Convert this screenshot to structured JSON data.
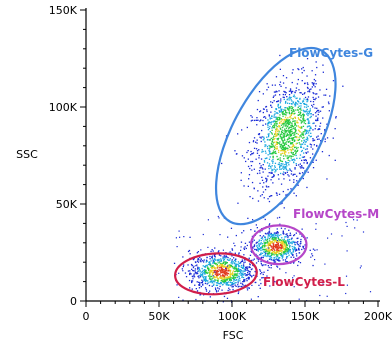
{
  "chart_data": {
    "type": "scatter",
    "xlabel": "FSC",
    "ylabel": "SSC",
    "xlim": [
      0,
      200000
    ],
    "ylim": [
      0,
      150000
    ],
    "x_ticks": [
      {
        "value": 0,
        "label": "0"
      },
      {
        "value": 50000,
        "label": "50K"
      },
      {
        "value": 100000,
        "label": "100K"
      },
      {
        "value": 150000,
        "label": "150K"
      },
      {
        "value": 200000,
        "label": "200K"
      }
    ],
    "y_ticks": [
      {
        "value": 0,
        "label": "0"
      },
      {
        "value": 50000,
        "label": "50K"
      },
      {
        "value": 100000,
        "label": "100K"
      },
      {
        "value": 150000,
        "label": "150K"
      }
    ],
    "grid": false,
    "density_colormap": [
      "#1a2bd6",
      "#1aa7e0",
      "#27c940",
      "#e8d020",
      "#e23a1e"
    ],
    "populations": [
      {
        "name": "FlowCytes-G",
        "color": "#4a8de0",
        "center": [
          138000,
          86000
        ],
        "spread": [
          12000,
          13000
        ],
        "events": 1300,
        "tilt": 0.35
      },
      {
        "name": "FlowCytes-M",
        "color": "#b646c8",
        "center": [
          130000,
          28000
        ],
        "spread": [
          9000,
          4500
        ],
        "events": 650,
        "tilt": 0.0
      },
      {
        "name": "FlowCytes-L",
        "color": "#d11e4a",
        "center": [
          93000,
          15000
        ],
        "spread": [
          11000,
          5000
        ],
        "events": 850,
        "tilt": 0.0
      }
    ],
    "gates": [
      {
        "label": "FlowCytes-G",
        "color": "#3f86de",
        "center": [
          130000,
          85000
        ],
        "radii": [
          30000,
          50000
        ],
        "rotation_deg": 28
      },
      {
        "label": "FlowCytes-M",
        "color": "#b646c8",
        "center": [
          132000,
          29000
        ],
        "radii": [
          19000,
          10000
        ],
        "rotation_deg": 0
      },
      {
        "label": "FlowCytes-L",
        "color": "#d11e4a",
        "center": [
          89000,
          14000
        ],
        "radii": [
          28000,
          10500
        ],
        "rotation_deg": -3
      }
    ]
  }
}
